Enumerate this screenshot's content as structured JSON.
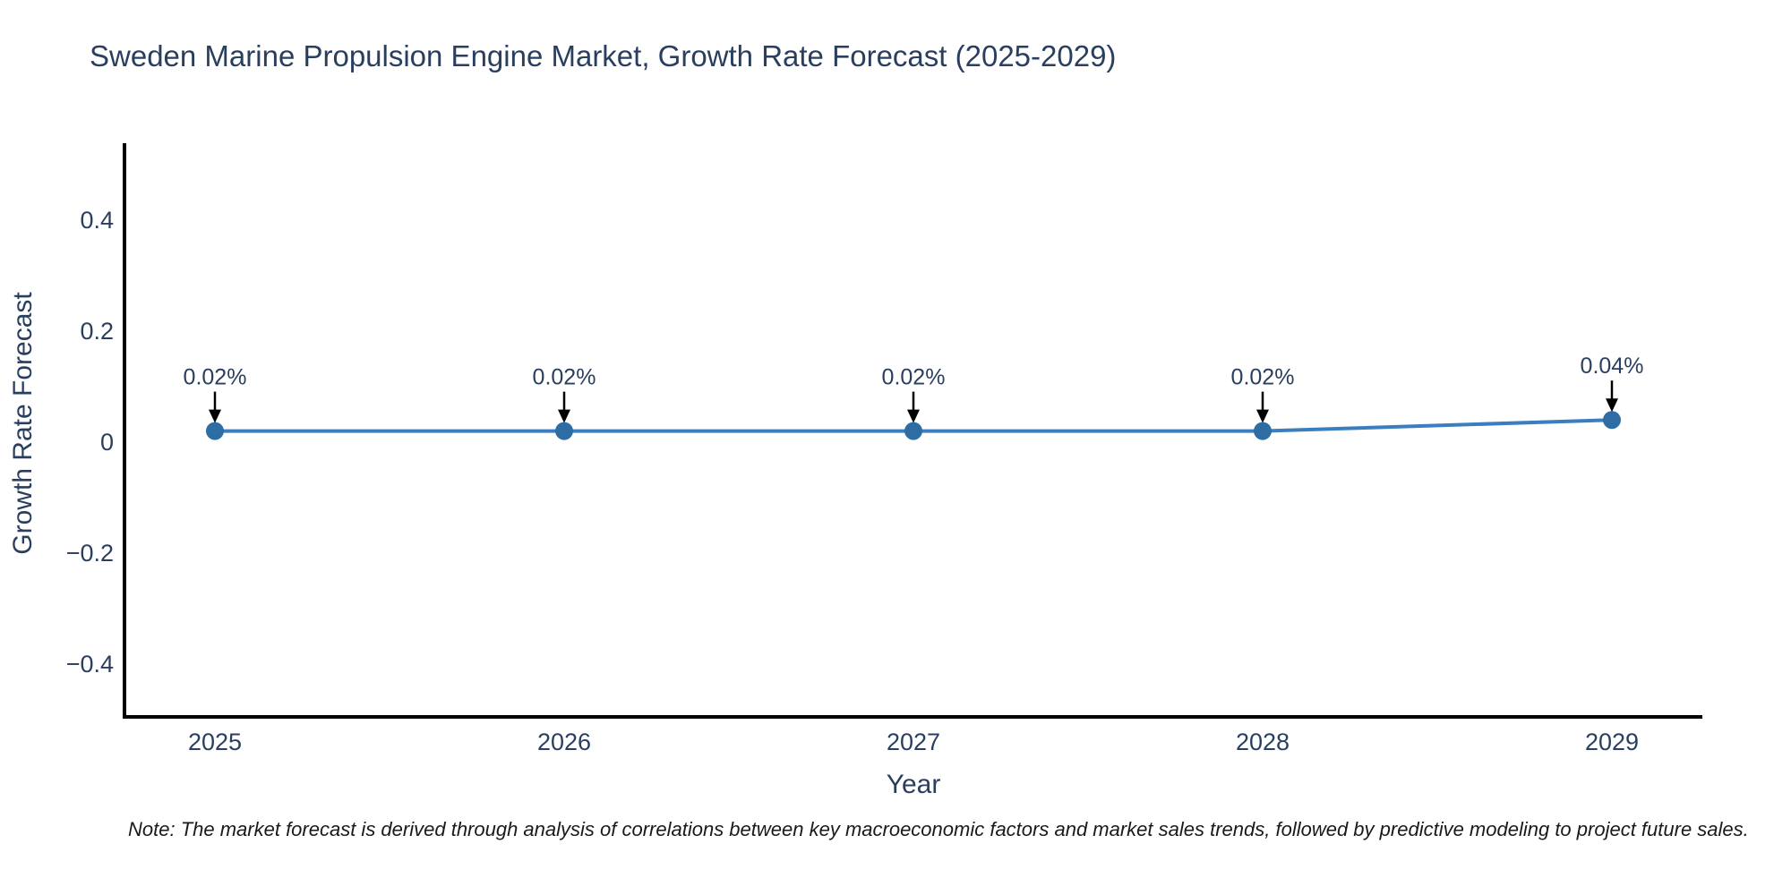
{
  "title": "Sweden Marine Propulsion Engine Market, Growth Rate Forecast (2025-2029)",
  "note": "Note: The market forecast is derived through analysis of correlations between key macroeconomic factors and market sales trends, followed by predictive modeling to project future sales.",
  "chart_data": {
    "type": "line",
    "title": "Sweden Marine Propulsion Engine Market, Growth Rate Forecast (2025-2029)",
    "xlabel": "Year",
    "ylabel": "Growth Rate Forecast",
    "x": [
      2025,
      2026,
      2027,
      2028,
      2029
    ],
    "values": [
      0.02,
      0.02,
      0.02,
      0.02,
      0.04
    ],
    "point_labels": [
      "0.02%",
      "0.02%",
      "0.02%",
      "0.02%",
      "0.04%"
    ],
    "x_tick_labels": [
      "2025",
      "2026",
      "2027",
      "2028",
      "2029"
    ],
    "y_ticks": [
      0.4,
      0.2,
      0,
      -0.2,
      -0.4
    ],
    "y_tick_labels": [
      "0.4",
      "0.2",
      "0",
      "−0.2",
      "−0.4"
    ],
    "ylim": [
      -0.5,
      0.54
    ],
    "grid": false,
    "legend": "none",
    "annotations_have_arrows": true,
    "colors": {
      "line": "#3a7ebf",
      "marker": "#2e6da4",
      "axis": "#000000",
      "text": "#2a3f5f",
      "annotation_arrow": "#000000",
      "note_text": "#1a1a1a",
      "background": "#ffffff"
    }
  }
}
